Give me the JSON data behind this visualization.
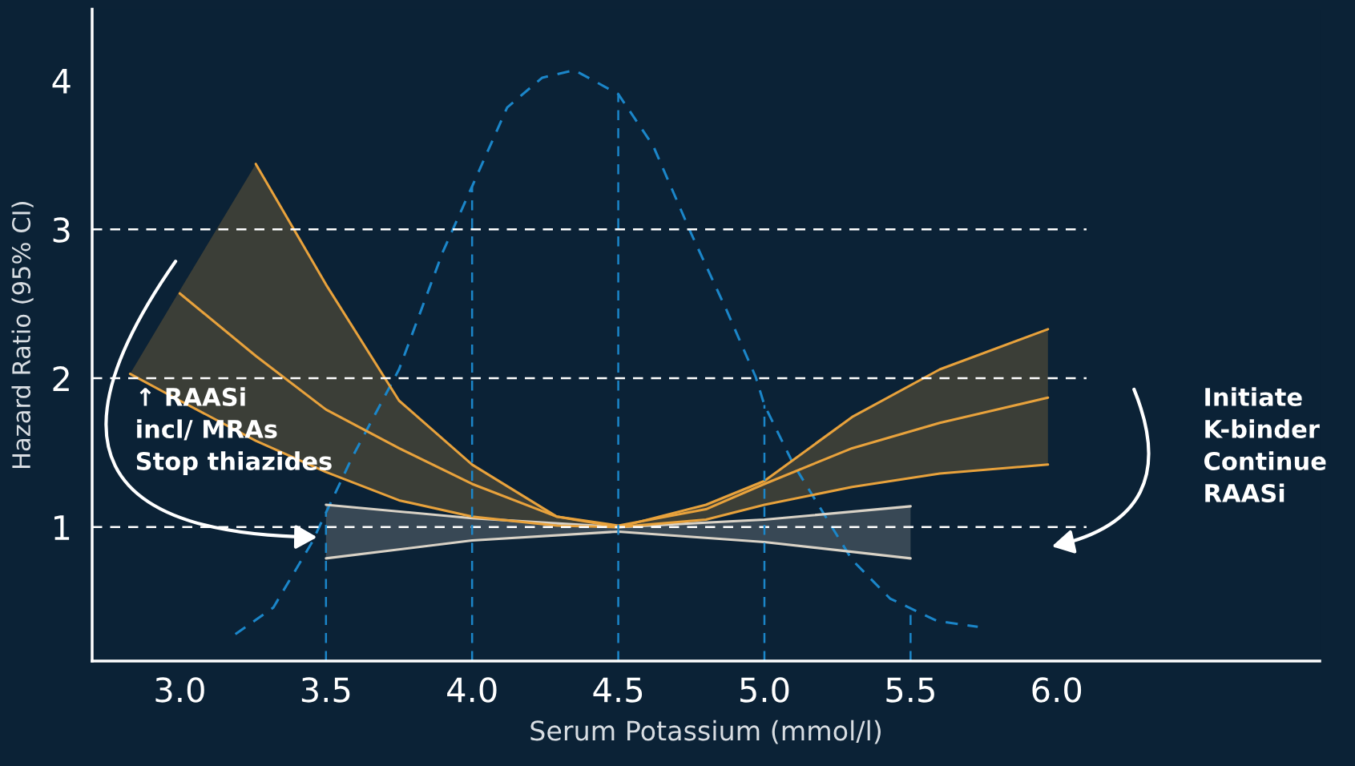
{
  "chart_data": {
    "type": "line",
    "xlabel": "Serum Potassium (mmol/l)",
    "ylabel": "Hazard Ratio (95% CI)",
    "xlim": [
      2.7,
      6.9
    ],
    "ylim": [
      0.1,
      4.48
    ],
    "xticks": [
      {
        "value": 3,
        "label": "3.0"
      },
      3.5,
      {
        "value": 4,
        "label": "4.0"
      },
      4.5,
      {
        "value": 5,
        "label": "5.0"
      },
      5.5,
      {
        "value": 6,
        "label": "6.0"
      }
    ],
    "yticks": [
      1,
      2,
      3,
      4
    ],
    "grid": false,
    "marker": "none",
    "series": [
      {
        "color": "#1b86c9",
        "line_style": "dashed",
        "x": [
          3.19,
          3.32,
          3.45,
          3.59,
          3.75,
          3.9,
          4.0,
          4.12,
          4.24,
          4.35,
          4.5,
          4.62,
          4.75,
          4.87,
          4.97,
          5.0,
          5.1,
          5.2,
          5.3,
          5.43,
          5.59,
          5.73
        ],
        "values": [
          0.28,
          0.46,
          0.89,
          1.47,
          2.06,
          2.85,
          3.29,
          3.82,
          4.02,
          4.07,
          3.91,
          3.56,
          2.97,
          2.46,
          2.01,
          1.82,
          1.42,
          1.1,
          0.78,
          0.52,
          0.37,
          0.33
        ]
      },
      {
        "color": "#d9d2c6",
        "line_style": "solid",
        "x": [
          3.5,
          4.0,
          4.5,
          5.0,
          5.5
        ],
        "values": [
          null,
          null,
          null,
          null,
          null
        ],
        "upper": [
          1.15,
          1.06,
          1.0,
          1.05,
          1.14
        ],
        "lower": [
          0.79,
          0.91,
          0.97,
          0.9,
          0.79
        ]
      },
      {
        "color": "#d9d2c6",
        "line_style": "solid",
        "x": [
          3.5,
          4.0,
          4.5,
          5.0,
          5.5
        ],
        "values": [
          1.15,
          1.06,
          1.0,
          1.05,
          1.14
        ]
      },
      {
        "color": "#d9d2c6",
        "line_style": "solid",
        "x": [
          3.5,
          4.0,
          4.5,
          5.0,
          5.5
        ],
        "values": [
          0.79,
          0.91,
          0.97,
          0.9,
          0.79
        ]
      },
      {
        "color": "#e8a23c",
        "line_style": "solid",
        "x": [
          2.83,
          3.0,
          3.26,
          3.5,
          3.75,
          4.0,
          4.29,
          4.5,
          4.8,
          5.0,
          5.3,
          5.6,
          5.97
        ],
        "values": [
          null,
          2.57,
          2.15,
          1.79,
          1.53,
          1.29,
          1.07,
          1.01,
          1.12,
          1.29,
          1.53,
          1.7,
          1.87
        ],
        "upper": [
          2.03,
          2.59,
          3.44,
          2.63,
          1.85,
          1.42,
          1.07,
          1.0,
          1.15,
          1.31,
          1.74,
          2.06,
          2.33
        ],
        "lower": [
          2.03,
          1.85,
          1.58,
          1.37,
          1.18,
          1.07,
          1.01,
          1.0,
          1.05,
          1.15,
          1.27,
          1.36,
          1.42
        ]
      },
      {
        "color": "#e8a23c",
        "line_style": "solid",
        "x": [
          3.26,
          3.5,
          3.75,
          4.0,
          4.29,
          4.5,
          4.8,
          5.0,
          5.3,
          5.6,
          5.97
        ],
        "values": [
          3.44,
          2.63,
          1.85,
          1.42,
          1.07,
          1.0,
          1.15,
          1.31,
          1.74,
          2.06,
          2.33
        ]
      },
      {
        "color": "#e8a23c",
        "line_style": "solid",
        "x": [
          2.83,
          3.0,
          3.26,
          3.5,
          3.75,
          4.0,
          4.29,
          4.5,
          4.8,
          5.0,
          5.3,
          5.6,
          5.97
        ],
        "values": [
          2.03,
          1.85,
          1.58,
          1.37,
          1.18,
          1.07,
          1.01,
          1.0,
          1.05,
          1.15,
          1.27,
          1.36,
          1.42
        ]
      }
    ],
    "ref_lines": [
      {
        "axis": "y",
        "value": 1,
        "color": "#ffffff",
        "line_style": "dashed"
      },
      {
        "axis": "y",
        "value": 2,
        "color": "#ffffff",
        "line_style": "dashed"
      },
      {
        "axis": "y",
        "value": 3,
        "color": "#ffffff",
        "line_style": "dashed"
      },
      {
        "axis": "x",
        "value": 3.5,
        "color": "#1b86c9",
        "line_style": "dashed"
      },
      {
        "axis": "x",
        "value": 4.0,
        "color": "#1b86c9",
        "line_style": "dashed"
      },
      {
        "axis": "x",
        "value": 4.5,
        "color": "#1b86c9",
        "line_style": "dashed"
      },
      {
        "axis": "x",
        "value": 5.0,
        "color": "#1b86c9",
        "line_style": "dashed"
      },
      {
        "axis": "x",
        "value": 5.5,
        "color": "#1b86c9",
        "line_style": "dashed"
      }
    ],
    "annotations": [
      "↑ RAASi\nincl/ MRAs\nStop thiazides",
      "Initiate\nK-binder\nContinue\nRAASi"
    ]
  }
}
